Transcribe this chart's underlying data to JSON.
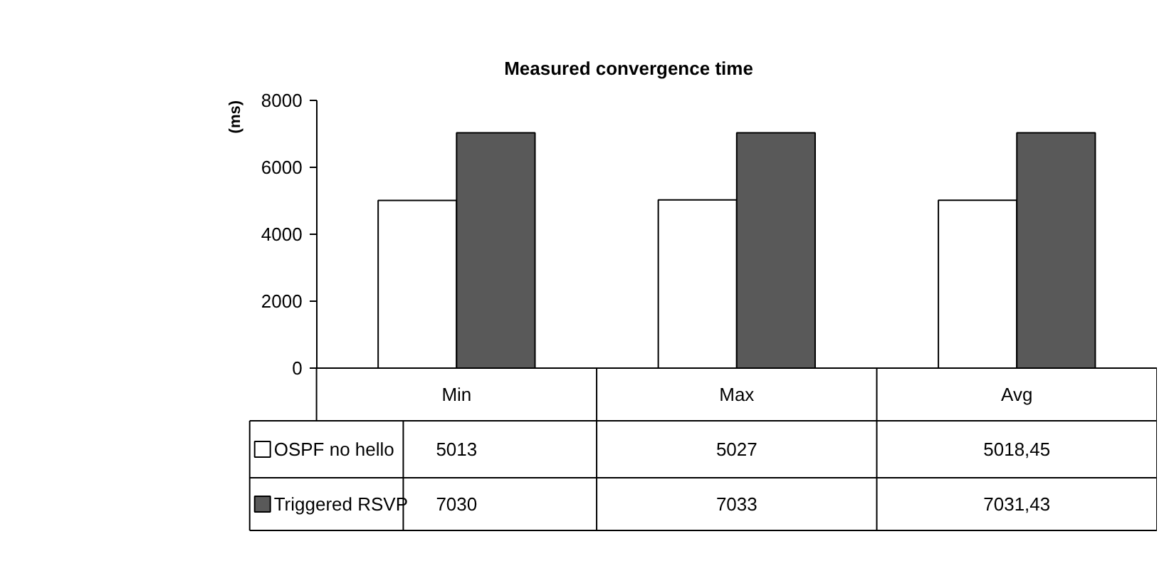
{
  "chart_data": {
    "type": "bar",
    "title": "Measured convergence time",
    "ylabel": "(ms)",
    "categories": [
      "Min",
      "Max",
      "Avg"
    ],
    "series": [
      {
        "name": "OSPF no hello",
        "color": "#ffffff",
        "values": [
          5013,
          5027,
          5018.45
        ],
        "value_labels": [
          "5013",
          "5027",
          "5018,45"
        ]
      },
      {
        "name": "Triggered RSVP",
        "color": "#595959",
        "values": [
          7030,
          7033,
          7031.43
        ],
        "value_labels": [
          "7030",
          "7033",
          "7031,43"
        ]
      }
    ],
    "ylim": [
      0,
      8000
    ],
    "yticks": [
      0,
      2000,
      4000,
      6000,
      8000
    ],
    "grid": false,
    "legend": "bottom left"
  }
}
